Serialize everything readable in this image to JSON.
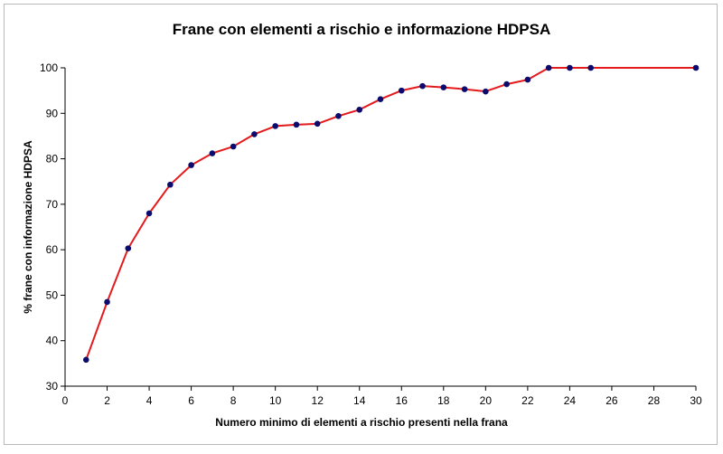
{
  "chart_data": {
    "type": "line",
    "title": "Frane con elementi a rischio e informazione HDPSA",
    "xlabel": "Numero minimo di elementi a rischio presenti nella frana",
    "ylabel": "% frane con informazione HDPSA",
    "xlim": [
      0,
      30
    ],
    "ylim": [
      30,
      100
    ],
    "xticks": [
      0,
      2,
      4,
      6,
      8,
      10,
      12,
      14,
      16,
      18,
      20,
      22,
      24,
      26,
      28,
      30
    ],
    "yticks": [
      30,
      40,
      50,
      60,
      70,
      80,
      90,
      100
    ],
    "grid": false,
    "legend": "none",
    "series": [
      {
        "line_color": "#e41a1c",
        "marker_color": "#0b0b6e",
        "points": [
          {
            "x": 1,
            "y": 35.8
          },
          {
            "x": 2,
            "y": 48.5
          },
          {
            "x": 3,
            "y": 60.3
          },
          {
            "x": 4,
            "y": 68.0
          },
          {
            "x": 5,
            "y": 74.3
          },
          {
            "x": 6,
            "y": 78.6
          },
          {
            "x": 7,
            "y": 81.2
          },
          {
            "x": 8,
            "y": 82.7
          },
          {
            "x": 9,
            "y": 85.4
          },
          {
            "x": 10,
            "y": 87.2
          },
          {
            "x": 11,
            "y": 87.5
          },
          {
            "x": 12,
            "y": 87.7
          },
          {
            "x": 13,
            "y": 89.4
          },
          {
            "x": 14,
            "y": 90.8
          },
          {
            "x": 15,
            "y": 93.1
          },
          {
            "x": 16,
            "y": 95.0
          },
          {
            "x": 17,
            "y": 96.0
          },
          {
            "x": 18,
            "y": 95.7
          },
          {
            "x": 19,
            "y": 95.3
          },
          {
            "x": 20,
            "y": 94.8
          },
          {
            "x": 21,
            "y": 96.4
          },
          {
            "x": 22,
            "y": 97.4
          },
          {
            "x": 23,
            "y": 100.0
          },
          {
            "x": 24,
            "y": 100.0
          },
          {
            "x": 25,
            "y": 100.0
          },
          {
            "x": 30,
            "y": 100.0
          }
        ]
      }
    ]
  }
}
